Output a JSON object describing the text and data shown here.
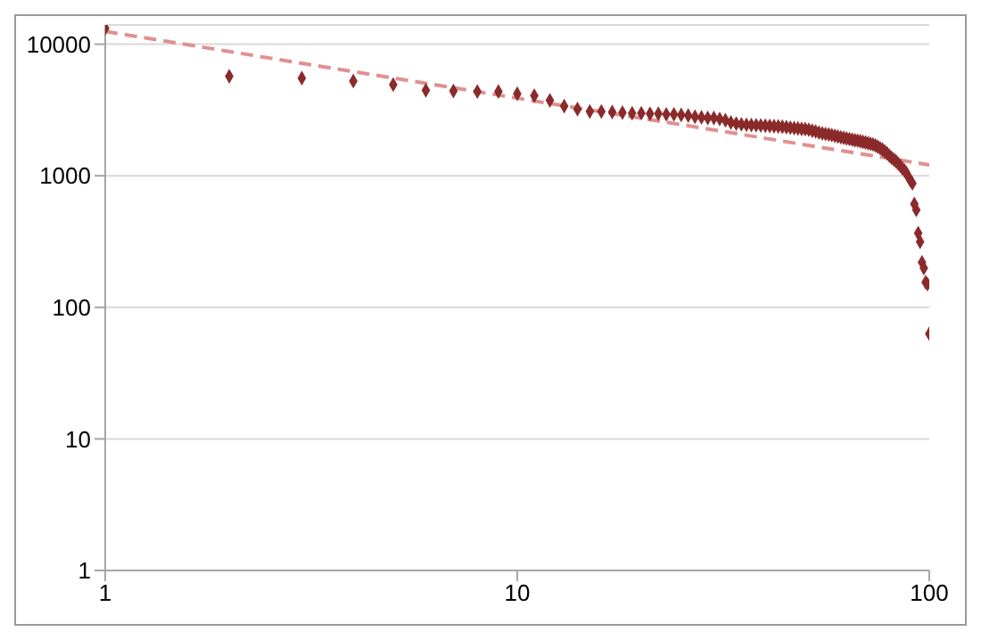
{
  "chart_data": {
    "type": "scatter",
    "log": "xy",
    "grid": "y",
    "legend": false,
    "marker": "diamond",
    "xlim": [
      1,
      100
    ],
    "xticks": [
      1,
      10,
      100
    ],
    "ylim": [
      1,
      14000
    ],
    "yticks": [
      1,
      10,
      100,
      1000,
      10000
    ],
    "series": [
      {
        "color": "#8b2a2a",
        "x": [
          1,
          2,
          3,
          4,
          5,
          6,
          7,
          8,
          9,
          10,
          11,
          12,
          13,
          14,
          15,
          16,
          17,
          18,
          19,
          20,
          21,
          22,
          23,
          24,
          25,
          26,
          27,
          28,
          29,
          30,
          31,
          32,
          33,
          34,
          35,
          36,
          37,
          38,
          39,
          40,
          41,
          42,
          43,
          44,
          45,
          46,
          47,
          48,
          49,
          50,
          51,
          52,
          53,
          54,
          55,
          56,
          57,
          58,
          59,
          60,
          61,
          62,
          63,
          64,
          65,
          66,
          67,
          68,
          69,
          70,
          71,
          72,
          73,
          74,
          75,
          76,
          77,
          78,
          79,
          80,
          81,
          82,
          83,
          84,
          85,
          86,
          87,
          88,
          89,
          90,
          91,
          92,
          93,
          94,
          95,
          96,
          97,
          98,
          99,
          100
        ],
        "values": [
          13200,
          5700,
          5520,
          5250,
          4930,
          4460,
          4410,
          4370,
          4370,
          4200,
          4060,
          3740,
          3380,
          3210,
          3080,
          3080,
          3050,
          3020,
          2990,
          2990,
          2960,
          2960,
          2930,
          2930,
          2900,
          2870,
          2810,
          2780,
          2750,
          2750,
          2700,
          2640,
          2540,
          2490,
          2460,
          2440,
          2430,
          2420,
          2410,
          2400,
          2390,
          2380,
          2370,
          2360,
          2340,
          2320,
          2300,
          2290,
          2270,
          2260,
          2240,
          2200,
          2170,
          2130,
          2100,
          2080,
          2060,
          2040,
          2010,
          1990,
          1960,
          1940,
          1920,
          1900,
          1880,
          1860,
          1850,
          1830,
          1810,
          1790,
          1770,
          1750,
          1730,
          1700,
          1660,
          1620,
          1580,
          1530,
          1480,
          1420,
          1370,
          1330,
          1290,
          1240,
          1190,
          1140,
          1100,
          1050,
          980,
          920,
          875,
          610,
          550,
          366,
          315,
          220,
          199,
          155,
          150,
          63
        ]
      },
      {
        "type": "line",
        "color": "#e09090",
        "line_style": "dashed",
        "marker": "none",
        "x": [
          1,
          100
        ],
        "values": [
          12500,
          1210
        ]
      }
    ]
  }
}
